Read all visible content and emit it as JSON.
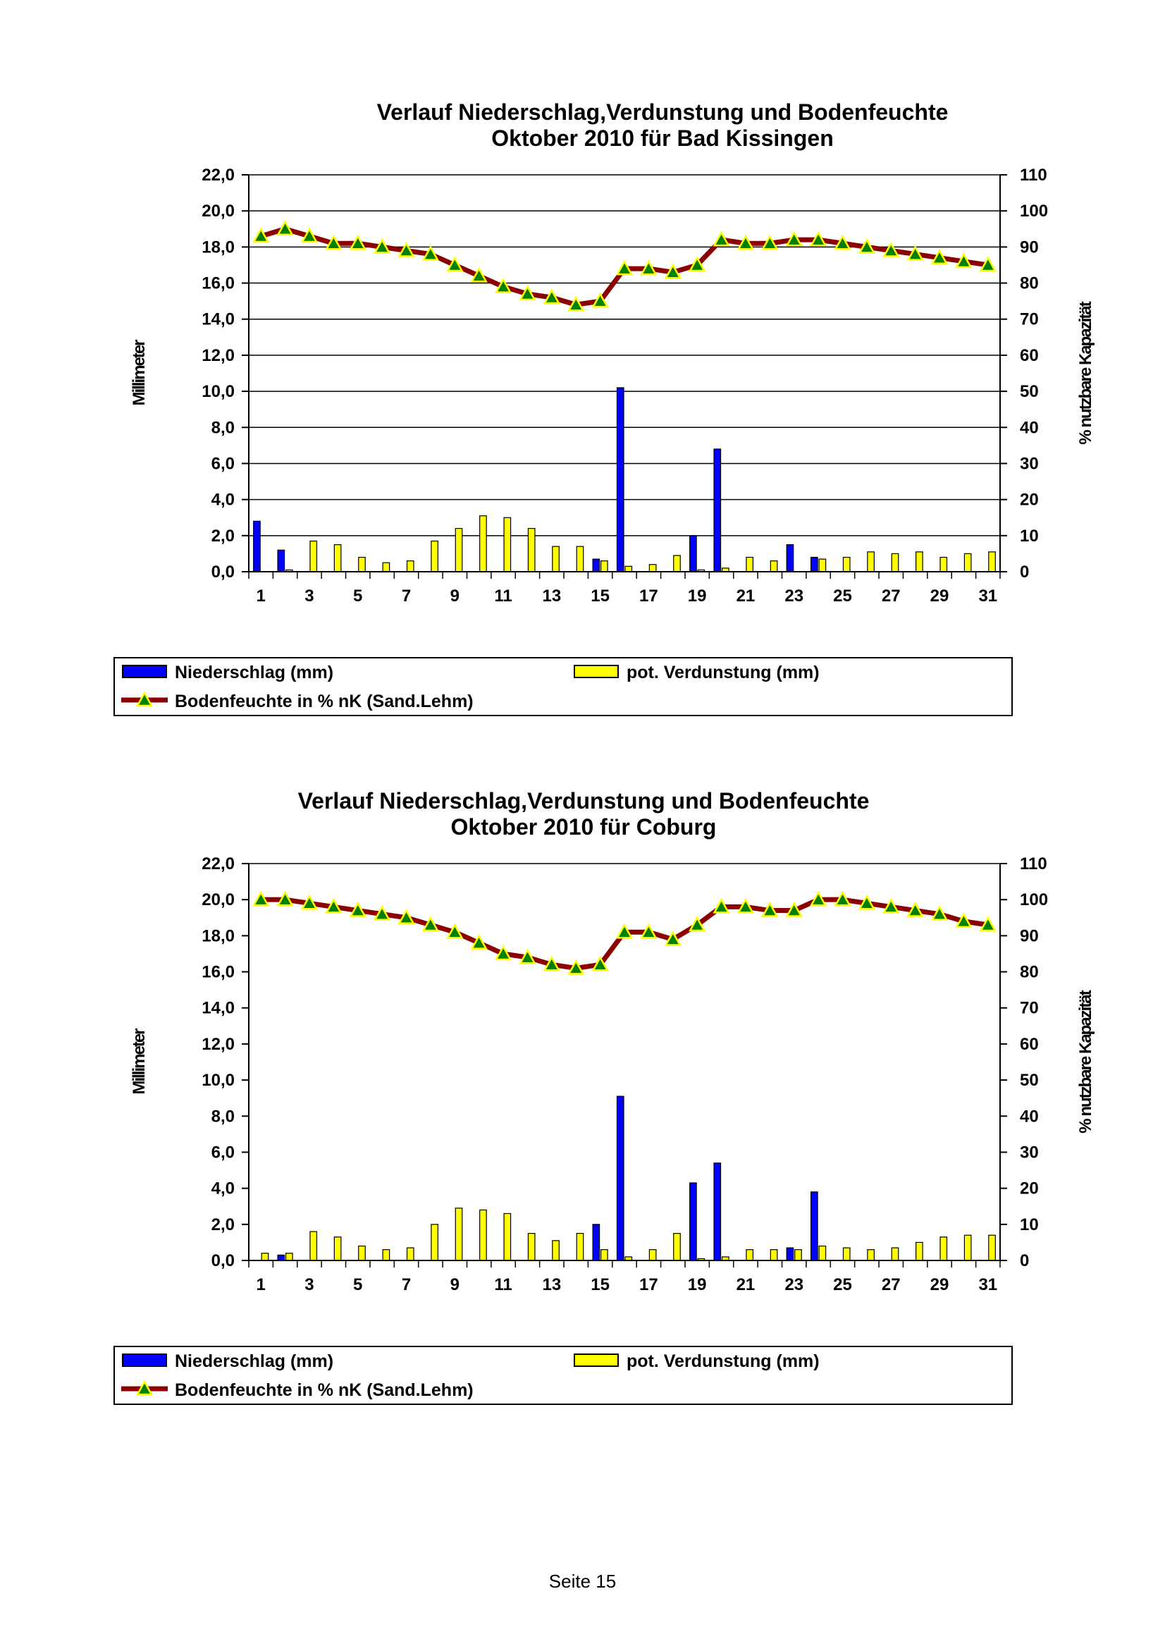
{
  "footer": "Seite 15",
  "chart_data": [
    {
      "type": "bar",
      "title": "Verlauf Niederschlag,Verdunstung und Bodenfeuchte",
      "subtitle": "Oktober 2010 für Bad Kissingen",
      "ylabel": "Millimeter",
      "y2label": "% nutzbare Kapazität",
      "ylim": [
        0,
        22
      ],
      "y2lim": [
        0,
        110
      ],
      "yticks": [
        "0,0",
        "2,0",
        "4,0",
        "6,0",
        "8,0",
        "10,0",
        "12,0",
        "14,0",
        "16,0",
        "18,0",
        "20,0",
        "22,0"
      ],
      "y2ticks": [
        "0",
        "10",
        "20",
        "30",
        "40",
        "50",
        "60",
        "70",
        "80",
        "90",
        "100",
        "110"
      ],
      "x": [
        1,
        2,
        3,
        4,
        5,
        6,
        7,
        8,
        9,
        10,
        11,
        12,
        13,
        14,
        15,
        16,
        17,
        18,
        19,
        20,
        21,
        22,
        23,
        24,
        25,
        26,
        27,
        28,
        29,
        30,
        31
      ],
      "xticks": [
        "1",
        "3",
        "5",
        "7",
        "9",
        "11",
        "13",
        "15",
        "17",
        "19",
        "21",
        "23",
        "25",
        "27",
        "29",
        "31"
      ],
      "grid": true,
      "legend_position": "bottom",
      "series": [
        {
          "name": "Niederschlag (mm)",
          "kind": "bar",
          "axis": "left",
          "color": "#0000ff",
          "values": [
            2.8,
            1.2,
            0,
            0,
            0,
            0,
            0,
            0,
            0,
            0,
            0,
            0,
            0,
            0,
            0.7,
            10.2,
            0,
            0,
            2.0,
            6.8,
            0,
            0,
            1.5,
            0.8,
            0,
            0,
            0,
            0,
            0,
            0,
            0
          ]
        },
        {
          "name": "pot. Verdunstung (mm)",
          "kind": "bar",
          "axis": "left",
          "color": "#ffff00",
          "values": [
            0,
            0.1,
            1.7,
            1.5,
            0.8,
            0.5,
            0.6,
            1.7,
            2.4,
            3.1,
            3.0,
            2.4,
            1.4,
            1.4,
            0.6,
            0.3,
            0.4,
            0.9,
            0.1,
            0.2,
            0.8,
            0.6,
            0,
            0.7,
            0.8,
            1.1,
            1.0,
            1.1,
            0.8,
            1.0,
            1.1
          ]
        },
        {
          "name": "Bodenfeuchte in % nK (Sand.Lehm)",
          "kind": "line",
          "axis": "right",
          "color": "#8b0000",
          "marker_color": "#ffff00",
          "marker_fill": "#008000",
          "values": [
            93,
            95,
            93,
            91,
            91,
            90,
            89,
            88,
            85,
            82,
            79,
            77,
            76,
            74,
            75,
            84,
            84,
            83,
            85,
            92,
            91,
            91,
            92,
            92,
            91,
            90,
            89,
            88,
            87,
            86,
            85
          ]
        }
      ]
    },
    {
      "type": "bar",
      "title": "Verlauf Niederschlag,Verdunstung und Bodenfeuchte",
      "subtitle": "Oktober 2010 für Coburg",
      "ylabel": "Millimeter",
      "y2label": "% nutzbare Kapazität",
      "ylim": [
        0,
        22
      ],
      "y2lim": [
        0,
        110
      ],
      "yticks": [
        "0,0",
        "2,0",
        "4,0",
        "6,0",
        "8,0",
        "10,0",
        "12,0",
        "14,0",
        "16,0",
        "18,0",
        "20,0",
        "22,0"
      ],
      "y2ticks": [
        "0",
        "10",
        "20",
        "30",
        "40",
        "50",
        "60",
        "70",
        "80",
        "90",
        "100",
        "110"
      ],
      "x": [
        1,
        2,
        3,
        4,
        5,
        6,
        7,
        8,
        9,
        10,
        11,
        12,
        13,
        14,
        15,
        16,
        17,
        18,
        19,
        20,
        21,
        22,
        23,
        24,
        25,
        26,
        27,
        28,
        29,
        30,
        31
      ],
      "xticks": [
        "1",
        "3",
        "5",
        "7",
        "9",
        "11",
        "13",
        "15",
        "17",
        "19",
        "21",
        "23",
        "25",
        "27",
        "29",
        "31"
      ],
      "grid": false,
      "legend_position": "bottom",
      "series": [
        {
          "name": "Niederschlag (mm)",
          "kind": "bar",
          "axis": "left",
          "color": "#0000ff",
          "values": [
            0,
            0.3,
            0,
            0,
            0,
            0,
            0,
            0,
            0,
            0,
            0,
            0,
            0,
            0,
            2.0,
            9.1,
            0,
            0,
            4.3,
            5.4,
            0,
            0,
            0.7,
            3.8,
            0,
            0,
            0,
            0,
            0,
            0,
            0
          ]
        },
        {
          "name": "pot. Verdunstung (mm)",
          "kind": "bar",
          "axis": "left",
          "color": "#ffff00",
          "values": [
            0.4,
            0.4,
            1.6,
            1.3,
            0.8,
            0.6,
            0.7,
            2.0,
            2.9,
            2.8,
            2.6,
            1.5,
            1.1,
            1.5,
            0.6,
            0.2,
            0.6,
            1.5,
            0.1,
            0.2,
            0.6,
            0.6,
            0.6,
            0.8,
            0.7,
            0.6,
            0.7,
            1.0,
            1.3,
            1.4,
            1.4
          ]
        },
        {
          "name": "Bodenfeuchte in % nK (Sand.Lehm)",
          "kind": "line",
          "axis": "right",
          "color": "#8b0000",
          "marker_color": "#ffff00",
          "marker_fill": "#008000",
          "values": [
            100,
            100,
            99,
            98,
            97,
            96,
            95,
            93,
            91,
            88,
            85,
            84,
            82,
            81,
            82,
            91,
            91,
            89,
            93,
            98,
            98,
            97,
            97,
            100,
            100,
            99,
            98,
            97,
            96,
            94,
            93
          ]
        }
      ]
    }
  ]
}
